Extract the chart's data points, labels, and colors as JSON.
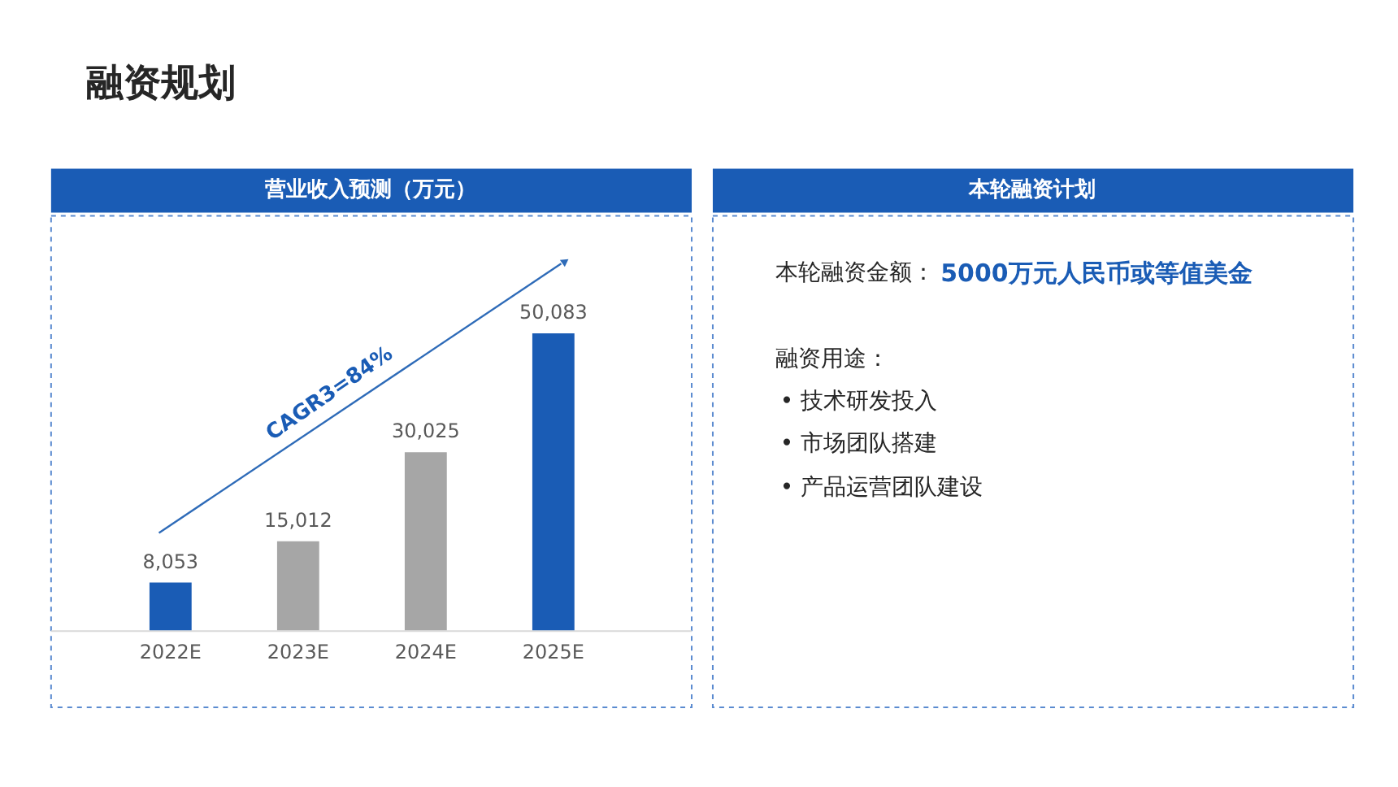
{
  "chart_data": [
    {
      "type": "other",
      "title": "融资规划"
    },
    {
      "type": "bar",
      "title": "营业收入预测（万元）",
      "categories": [
        "2022E",
        "2023E",
        "2024E",
        "2025E"
      ],
      "values": [
        8053,
        15012,
        30025,
        50083
      ],
      "value_labels": [
        "8,053",
        "15,012",
        "30,025",
        "50,083"
      ],
      "colors": [
        "#1a5cb5",
        "#a6a6a6",
        "#a6a6a6",
        "#1a5cb5"
      ],
      "annotations": [
        "CAGR3=84%"
      ]
    },
    {
      "type": "other",
      "title": "本轮融资计划",
      "annotations": [
        "本轮融资金额：",
        "5000万元人民币或等值美金",
        "融资用途：",
        "• 技术研发投入",
        "• 市场团队搭建",
        "• 产品运营团队建设"
      ]
    }
  ]
}
